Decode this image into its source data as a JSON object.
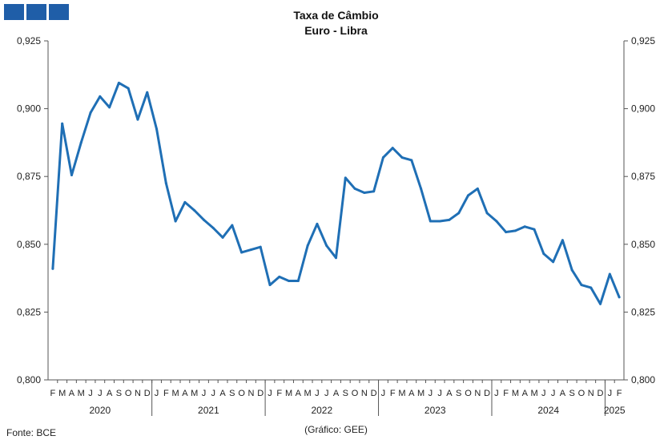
{
  "header": {
    "title": "Taxa de Câmbio",
    "subtitle": "Euro - Libra"
  },
  "footer": {
    "source": "Fonte: BCE",
    "credit": "(Gráfico: GEE)"
  },
  "colors": {
    "logo": "#1f5ea8",
    "line": "#1f6fb5",
    "axis": "#555555"
  },
  "chart_data": {
    "type": "line",
    "title": "Taxa de Câmbio",
    "subtitle": "Euro - Libra",
    "ylim": [
      0.8,
      0.925
    ],
    "y_ticks": [
      "0,800",
      "0,825",
      "0,850",
      "0,875",
      "0,900",
      "0,925"
    ],
    "y_tick_values": [
      0.8,
      0.825,
      0.85,
      0.875,
      0.9,
      0.925
    ],
    "grid": false,
    "secondary_y_axis": true,
    "x": [
      "F",
      "M",
      "A",
      "M",
      "J",
      "J",
      "A",
      "S",
      "O",
      "N",
      "D",
      "J",
      "F",
      "M",
      "A",
      "M",
      "J",
      "J",
      "A",
      "S",
      "O",
      "N",
      "D",
      "J",
      "F",
      "M",
      "A",
      "M",
      "J",
      "J",
      "A",
      "S",
      "O",
      "N",
      "D",
      "J",
      "F",
      "M",
      "A",
      "M",
      "J",
      "J",
      "A",
      "S",
      "O",
      "N",
      "D",
      "J",
      "F",
      "M",
      "A",
      "M",
      "J",
      "J",
      "A",
      "S",
      "O",
      "N",
      "D",
      "J",
      "F"
    ],
    "years": [
      {
        "label": "2020",
        "months": 11
      },
      {
        "label": "2021",
        "months": 12
      },
      {
        "label": "2022",
        "months": 12
      },
      {
        "label": "2023",
        "months": 12
      },
      {
        "label": "2024",
        "months": 12
      },
      {
        "label": "2025",
        "months": 2
      }
    ],
    "series": [
      {
        "values": [
          0.841,
          0.8945,
          0.8755,
          0.8875,
          0.8985,
          0.9045,
          0.9005,
          0.9095,
          0.9075,
          0.896,
          0.906,
          0.8925,
          0.8725,
          0.8585,
          0.8655,
          0.8625,
          0.859,
          0.856,
          0.8525,
          0.857,
          0.847,
          0.848,
          0.849,
          0.835,
          0.838,
          0.8365,
          0.8365,
          0.8495,
          0.8575,
          0.8495,
          0.845,
          0.8745,
          0.8705,
          0.869,
          0.8695,
          0.882,
          0.8855,
          0.882,
          0.881,
          0.8705,
          0.8585,
          0.8585,
          0.859,
          0.8615,
          0.868,
          0.8705,
          0.8615,
          0.8585,
          0.8545,
          0.855,
          0.8565,
          0.8555,
          0.8465,
          0.8435,
          0.8515,
          0.8405,
          0.835,
          0.834,
          0.828,
          0.839,
          0.8305
        ]
      }
    ]
  }
}
